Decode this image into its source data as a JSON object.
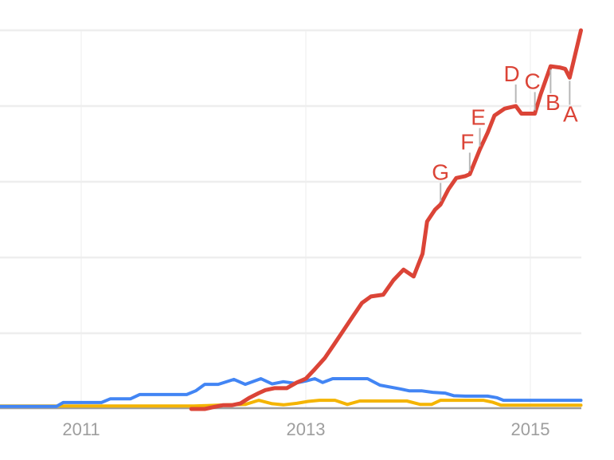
{
  "chart_data": {
    "type": "line",
    "title": "",
    "description": "Interest-over-time trends chart, three series, annotation letters A-G on red series",
    "legend_visible": false,
    "x_axis": {
      "ticks": [
        {
          "label": "2011",
          "t": 2011
        },
        {
          "label": "2013",
          "t": 2013
        },
        {
          "label": "2015",
          "t": 2015
        }
      ],
      "range": [
        2010.28,
        2015.45
      ],
      "grid": "faint-vertical-at-labeled-years"
    },
    "y_axis": {
      "range": [
        0,
        100
      ],
      "gridline_values": [
        20,
        40,
        60,
        80,
        100
      ],
      "baseline_value": 0,
      "tick_labels_visible": false
    },
    "series": [
      {
        "name": "yellow-series",
        "color": "#f4b400",
        "width": 4,
        "points": [
          [
            2010.28,
            0.8
          ],
          [
            2012.0,
            0.8
          ],
          [
            2012.12,
            0.9
          ],
          [
            2012.3,
            1.1
          ],
          [
            2012.46,
            1.2
          ],
          [
            2012.58,
            2.3
          ],
          [
            2012.7,
            1.4
          ],
          [
            2012.8,
            1.1
          ],
          [
            2012.92,
            1.5
          ],
          [
            2013.02,
            2.0
          ],
          [
            2013.12,
            2.3
          ],
          [
            2013.26,
            2.3
          ],
          [
            2013.37,
            1.2
          ],
          [
            2013.48,
            2.1
          ],
          [
            2013.9,
            2.1
          ],
          [
            2014.02,
            1.2
          ],
          [
            2014.12,
            1.2
          ],
          [
            2014.2,
            2.3
          ],
          [
            2014.58,
            2.3
          ],
          [
            2014.66,
            1.8
          ],
          [
            2014.74,
            1.0
          ],
          [
            2015.45,
            1.0
          ]
        ]
      },
      {
        "name": "blue-series",
        "color": "#4285f4",
        "width": 4,
        "points": [
          [
            2010.28,
            0.7
          ],
          [
            2010.78,
            0.7
          ],
          [
            2010.84,
            1.7
          ],
          [
            2011.18,
            1.7
          ],
          [
            2011.26,
            2.7
          ],
          [
            2011.44,
            2.7
          ],
          [
            2011.52,
            3.8
          ],
          [
            2011.94,
            3.8
          ],
          [
            2012.02,
            4.8
          ],
          [
            2012.1,
            6.5
          ],
          [
            2012.22,
            6.5
          ],
          [
            2012.36,
            7.8
          ],
          [
            2012.46,
            6.5
          ],
          [
            2012.6,
            8.0
          ],
          [
            2012.7,
            6.6
          ],
          [
            2012.8,
            7.2
          ],
          [
            2012.9,
            6.8
          ],
          [
            2013.0,
            7.4
          ],
          [
            2013.08,
            8.0
          ],
          [
            2013.15,
            7.0
          ],
          [
            2013.24,
            8.0
          ],
          [
            2013.55,
            8.0
          ],
          [
            2013.66,
            6.3
          ],
          [
            2013.84,
            5.3
          ],
          [
            2013.92,
            4.8
          ],
          [
            2014.03,
            4.8
          ],
          [
            2014.13,
            4.4
          ],
          [
            2014.24,
            4.2
          ],
          [
            2014.32,
            3.5
          ],
          [
            2014.42,
            3.4
          ],
          [
            2014.62,
            3.4
          ],
          [
            2014.7,
            3.0
          ],
          [
            2014.76,
            2.3
          ],
          [
            2015.45,
            2.3
          ]
        ]
      },
      {
        "name": "red-series",
        "color": "#db4437",
        "width": 5,
        "points": [
          [
            2011.98,
            0
          ],
          [
            2012.1,
            0
          ],
          [
            2012.18,
            0.5
          ],
          [
            2012.26,
            1.0
          ],
          [
            2012.34,
            1.0
          ],
          [
            2012.42,
            1.5
          ],
          [
            2012.5,
            3.0
          ],
          [
            2012.58,
            4.2
          ],
          [
            2012.64,
            5.0
          ],
          [
            2012.72,
            5.5
          ],
          [
            2012.83,
            5.5
          ],
          [
            2012.92,
            7.0
          ],
          [
            2013.0,
            8.0
          ],
          [
            2013.08,
            10.5
          ],
          [
            2013.17,
            13.5
          ],
          [
            2013.25,
            17.0
          ],
          [
            2013.33,
            20.5
          ],
          [
            2013.42,
            24.5
          ],
          [
            2013.5,
            28.0
          ],
          [
            2013.58,
            29.7
          ],
          [
            2013.69,
            30.2
          ],
          [
            2013.78,
            34.0
          ],
          [
            2013.87,
            36.8
          ],
          [
            2013.96,
            35.0
          ],
          [
            2014.04,
            41.0
          ],
          [
            2014.08,
            49.5
          ],
          [
            2014.15,
            52.6
          ],
          [
            2014.2,
            54.0
          ],
          [
            2014.27,
            58.0
          ],
          [
            2014.34,
            61.0
          ],
          [
            2014.42,
            61.5
          ],
          [
            2014.46,
            62.0
          ],
          [
            2014.55,
            68.5
          ],
          [
            2014.62,
            73.0
          ],
          [
            2014.68,
            77.5
          ],
          [
            2014.77,
            79.3
          ],
          [
            2014.87,
            80.0
          ],
          [
            2014.92,
            78.0
          ],
          [
            2015.04,
            78.0
          ],
          [
            2015.09,
            83.0
          ],
          [
            2015.18,
            90.5
          ],
          [
            2015.26,
            90.2
          ],
          [
            2015.31,
            89.8
          ],
          [
            2015.35,
            87.5
          ],
          [
            2015.45,
            100.0
          ]
        ]
      }
    ],
    "annotations": [
      {
        "label": "A",
        "t": 2015.35,
        "value": 87.5,
        "side": "below",
        "dx": 1
      },
      {
        "label": "B",
        "t": 2015.18,
        "value": 90.5,
        "side": "below",
        "dx": 3
      },
      {
        "label": "C",
        "t": 2015.04,
        "value": 78.0,
        "side": "above",
        "dx": -3
      },
      {
        "label": "D",
        "t": 2014.87,
        "value": 80.0,
        "side": "above",
        "dx": -5
      },
      {
        "label": "E",
        "t": 2014.55,
        "value": 68.5,
        "side": "above",
        "dx": -2
      },
      {
        "label": "F",
        "t": 2014.46,
        "value": 62.0,
        "side": "above",
        "dx": -3
      },
      {
        "label": "G",
        "t": 2014.2,
        "value": 54.0,
        "side": "above",
        "dx": 0
      }
    ]
  },
  "colors": {
    "background": "#ffffff",
    "gridline": "#eeeeee",
    "year_line": "#f4f4f4",
    "axis_baseline": "#9e9e9e",
    "tick_label": "#9e9e9e",
    "annotation_tick": "#b7b7b7",
    "annotation_text": "#db4437"
  }
}
